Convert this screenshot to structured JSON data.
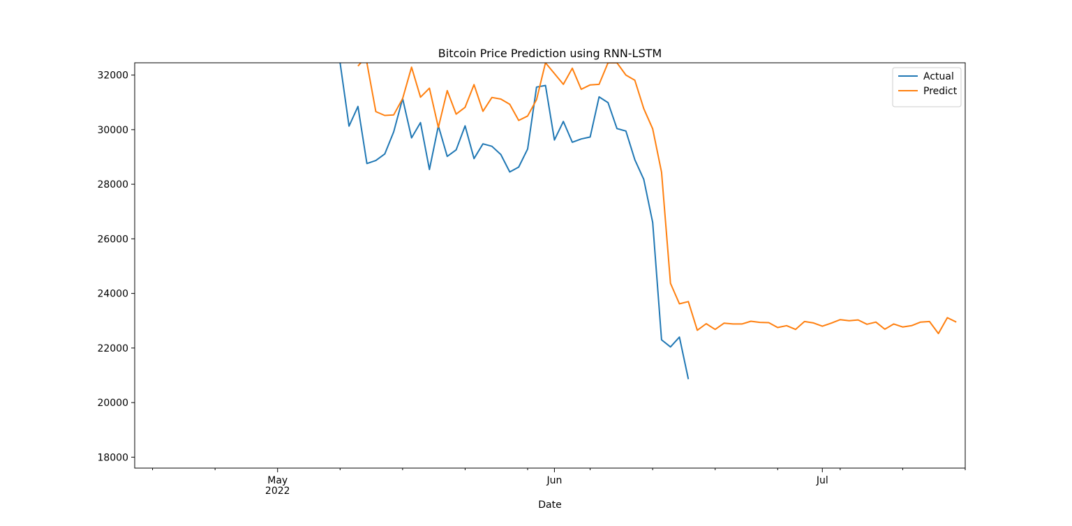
{
  "chart_data": {
    "type": "line",
    "title": "Bitcoin Price Prediction using RNN-LSTM",
    "xlabel": "Date",
    "ylabel": "",
    "ylim": [
      17600,
      32450
    ],
    "xlim": [
      "2022-04-15",
      "2022-07-17"
    ],
    "grid": false,
    "legend_position": "top-right",
    "x_ticks": [
      {
        "date": "2022-05-01",
        "label": "May",
        "sublabel": "2022"
      },
      {
        "date": "2022-06-01",
        "label": "Jun",
        "sublabel": ""
      },
      {
        "date": "2022-07-01",
        "label": "Jul",
        "sublabel": ""
      }
    ],
    "y_ticks": [
      {
        "value": 18000,
        "label": "18000"
      },
      {
        "value": 20000,
        "label": "20000"
      },
      {
        "value": 22000,
        "label": "22000"
      },
      {
        "value": 24000,
        "label": "24000"
      },
      {
        "value": 26000,
        "label": "26000"
      },
      {
        "value": 28000,
        "label": "28000"
      },
      {
        "value": 30000,
        "label": "30000"
      },
      {
        "value": 32000,
        "label": "32000"
      }
    ],
    "series": [
      {
        "name": "Actual",
        "color": "#1f77b4",
        "points": [
          [
            "2022-05-08",
            32450
          ],
          [
            "2022-05-09",
            30130
          ],
          [
            "2022-05-10",
            30850
          ],
          [
            "2022-05-11",
            28760
          ],
          [
            "2022-05-12",
            28870
          ],
          [
            "2022-05-13",
            29110
          ],
          [
            "2022-05-14",
            29920
          ],
          [
            "2022-05-15",
            31140
          ],
          [
            "2022-05-16",
            29700
          ],
          [
            "2022-05-17",
            30260
          ],
          [
            "2022-05-18",
            28540
          ],
          [
            "2022-05-19",
            30140
          ],
          [
            "2022-05-20",
            29020
          ],
          [
            "2022-05-21",
            29260
          ],
          [
            "2022-05-22",
            30140
          ],
          [
            "2022-05-23",
            28940
          ],
          [
            "2022-05-24",
            29480
          ],
          [
            "2022-05-25",
            29390
          ],
          [
            "2022-05-26",
            29090
          ],
          [
            "2022-05-27",
            28450
          ],
          [
            "2022-05-28",
            28630
          ],
          [
            "2022-05-29",
            29290
          ],
          [
            "2022-05-30",
            31560
          ],
          [
            "2022-05-31",
            31620
          ],
          [
            "2022-06-01",
            29620
          ],
          [
            "2022-06-02",
            30300
          ],
          [
            "2022-06-03",
            29540
          ],
          [
            "2022-06-04",
            29660
          ],
          [
            "2022-06-05",
            29730
          ],
          [
            "2022-06-06",
            31200
          ],
          [
            "2022-06-07",
            30990
          ],
          [
            "2022-06-08",
            30040
          ],
          [
            "2022-06-09",
            29950
          ],
          [
            "2022-06-10",
            28900
          ],
          [
            "2022-06-11",
            28180
          ],
          [
            "2022-06-12",
            26600
          ],
          [
            "2022-06-13",
            22300
          ],
          [
            "2022-06-14",
            22040
          ],
          [
            "2022-06-15",
            22400
          ],
          [
            "2022-06-16",
            20860
          ]
        ]
      },
      {
        "name": "Predict",
        "color": "#ff7f0e",
        "points": [
          [
            "2022-05-10",
            32330
          ],
          [
            "2022-05-10",
            32330
          ],
          [
            "2022-05-11",
            32700
          ],
          [
            "2022-05-11",
            32450
          ],
          [
            "2022-05-12",
            30660
          ],
          [
            "2022-05-13",
            30520
          ],
          [
            "2022-05-14",
            30540
          ],
          [
            "2022-05-15",
            31140
          ],
          [
            "2022-05-16",
            32290
          ],
          [
            "2022-05-17",
            31190
          ],
          [
            "2022-05-18",
            31520
          ],
          [
            "2022-05-19",
            30080
          ],
          [
            "2022-05-20",
            31430
          ],
          [
            "2022-05-21",
            30570
          ],
          [
            "2022-05-22",
            30820
          ],
          [
            "2022-05-23",
            31650
          ],
          [
            "2022-05-24",
            30670
          ],
          [
            "2022-05-25",
            31180
          ],
          [
            "2022-05-26",
            31120
          ],
          [
            "2022-05-27",
            30930
          ],
          [
            "2022-05-28",
            30340
          ],
          [
            "2022-05-29",
            30500
          ],
          [
            "2022-05-30",
            31100
          ],
          [
            "2022-05-31",
            32450
          ],
          [
            "2022-06-02",
            31660
          ],
          [
            "2022-06-03",
            32250
          ],
          [
            "2022-06-04",
            31480
          ],
          [
            "2022-06-05",
            31640
          ],
          [
            "2022-06-06",
            31660
          ],
          [
            "2022-06-07",
            32450
          ],
          [
            "2022-06-08",
            32450
          ],
          [
            "2022-06-09",
            32000
          ],
          [
            "2022-06-10",
            31810
          ],
          [
            "2022-06-11",
            30770
          ],
          [
            "2022-06-12",
            30030
          ],
          [
            "2022-06-13",
            28440
          ],
          [
            "2022-06-14",
            24370
          ],
          [
            "2022-06-15",
            23620
          ],
          [
            "2022-06-16",
            23700
          ],
          [
            "2022-06-17",
            22650
          ],
          [
            "2022-06-18",
            22890
          ],
          [
            "2022-06-19",
            22680
          ],
          [
            "2022-06-20",
            22910
          ],
          [
            "2022-06-21",
            22880
          ],
          [
            "2022-06-22",
            22880
          ],
          [
            "2022-06-23",
            22980
          ],
          [
            "2022-06-24",
            22940
          ],
          [
            "2022-06-25",
            22930
          ],
          [
            "2022-06-26",
            22750
          ],
          [
            "2022-06-27",
            22820
          ],
          [
            "2022-06-28",
            22680
          ],
          [
            "2022-06-29",
            22970
          ],
          [
            "2022-06-30",
            22920
          ],
          [
            "2022-07-01",
            22800
          ],
          [
            "2022-07-02",
            22910
          ],
          [
            "2022-07-03",
            23040
          ],
          [
            "2022-07-04",
            23000
          ],
          [
            "2022-07-05",
            23030
          ],
          [
            "2022-07-06",
            22870
          ],
          [
            "2022-07-07",
            22950
          ],
          [
            "2022-07-08",
            22690
          ],
          [
            "2022-07-09",
            22880
          ],
          [
            "2022-07-10",
            22770
          ],
          [
            "2022-07-11",
            22820
          ],
          [
            "2022-07-12",
            22950
          ],
          [
            "2022-07-13",
            22970
          ],
          [
            "2022-07-14",
            22530
          ],
          [
            "2022-07-15",
            23110
          ],
          [
            "2022-07-16",
            22950
          ]
        ]
      }
    ]
  }
}
